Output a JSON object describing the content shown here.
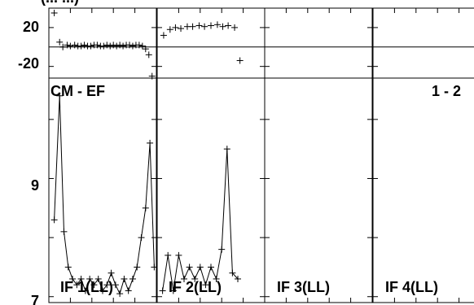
{
  "chart_data": {
    "type": "scatter",
    "header_fragment": "(... ...)",
    "baseline_label": "CM - EF",
    "correlation_label": "1 - 2",
    "phase_panel": {
      "ytick_labels": [
        "20",
        "-20"
      ],
      "yticks": [
        20,
        -20
      ],
      "ylim": [
        -32,
        40
      ],
      "reference_line": 0
    },
    "amplitude_panel": {
      "ytick_labels": [
        "9",
        "7"
      ],
      "yticks": [
        9,
        7
      ],
      "ylim": [
        6.9,
        10.7
      ]
    },
    "panels": [
      {
        "label": "IF 1(LL)",
        "phase": {
          "x": [
            0.05,
            0.1,
            0.13,
            0.17,
            0.2,
            0.24,
            0.27,
            0.3,
            0.33,
            0.36,
            0.39,
            0.42,
            0.45,
            0.48,
            0.51,
            0.54,
            0.57,
            0.6,
            0.63,
            0.66,
            0.69,
            0.72,
            0.75,
            0.78,
            0.81,
            0.84,
            0.87,
            0.9,
            0.93,
            0.96
          ],
          "y": [
            35,
            5,
            0,
            2,
            1,
            2,
            1,
            1,
            2,
            1,
            1,
            2,
            2,
            1,
            1,
            2,
            1,
            2,
            1,
            2,
            1,
            2,
            2,
            1,
            2,
            2,
            1,
            -2,
            -8,
            -30
          ]
        },
        "amplitude": {
          "x": [
            0.05,
            0.1,
            0.14,
            0.18,
            0.22,
            0.26,
            0.3,
            0.34,
            0.38,
            0.42,
            0.46,
            0.5,
            0.54,
            0.58,
            0.62,
            0.66,
            0.7,
            0.74,
            0.78,
            0.82,
            0.86,
            0.9,
            0.94,
            0.98
          ],
          "y": [
            8.3,
            10.4,
            8.1,
            7.5,
            7.3,
            7.2,
            7.3,
            7.1,
            7.3,
            7.2,
            7.3,
            7.1,
            7.2,
            7.4,
            7.2,
            7.05,
            7.3,
            7.1,
            7.3,
            7.5,
            8.0,
            8.5,
            9.6,
            7.5
          ]
        }
      },
      {
        "label": "IF 2(LL)",
        "phase": {
          "x": [
            0.06,
            0.12,
            0.17,
            0.22,
            0.28,
            0.33,
            0.39,
            0.44,
            0.5,
            0.56,
            0.61,
            0.66,
            0.72,
            0.77
          ],
          "y": [
            12,
            18,
            20,
            19,
            21,
            21,
            22,
            21,
            22,
            23,
            21,
            22,
            20,
            -14
          ]
        },
        "amplitude": {
          "x": [
            0.05,
            0.1,
            0.15,
            0.2,
            0.25,
            0.3,
            0.35,
            0.4,
            0.45,
            0.5,
            0.55,
            0.6,
            0.65,
            0.7,
            0.75
          ],
          "y": [
            7.1,
            7.7,
            7.1,
            7.7,
            7.3,
            7.5,
            7.3,
            7.5,
            7.2,
            7.5,
            7.3,
            7.8,
            9.5,
            7.4,
            7.3
          ]
        }
      },
      {
        "label": "IF 3(LL)",
        "phase": {
          "x": [],
          "y": []
        },
        "amplitude": {
          "x": [],
          "y": []
        }
      },
      {
        "label": "IF 4(LL)",
        "phase": {
          "x": [],
          "y": []
        },
        "amplitude": {
          "x": [],
          "y": []
        }
      }
    ]
  }
}
